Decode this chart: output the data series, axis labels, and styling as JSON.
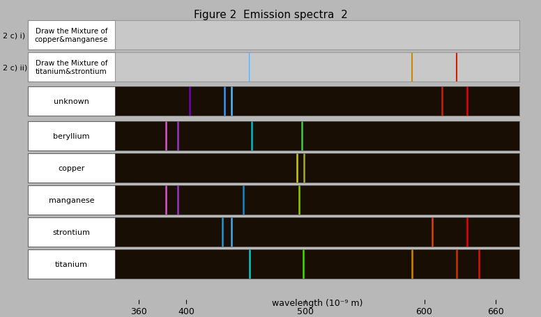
{
  "title": "Figure 2  Emission spectra  2",
  "xlabel": "wavelength (10⁻⁹ m)",
  "x_min": 340,
  "x_max": 680,
  "x_ticks": [
    360,
    400,
    500,
    600,
    660
  ],
  "background_color": "#b8b8b8",
  "spectrum_bg": "#180e04",
  "answer_bg": "#c8c8c8",
  "rows": [
    {
      "name": "unknown",
      "lines": [
        {
          "wl": 403,
          "color": "#7700bb"
        },
        {
          "wl": 432,
          "color": "#3399ff"
        },
        {
          "wl": 438,
          "color": "#55bbff"
        },
        {
          "wl": 615,
          "color": "#cc2200"
        },
        {
          "wl": 636,
          "color": "#ee0000"
        }
      ]
    },
    {
      "name": "beryllium",
      "lines": [
        {
          "wl": 383,
          "color": "#dd55cc"
        },
        {
          "wl": 393,
          "color": "#9933cc"
        },
        {
          "wl": 455,
          "color": "#00bbcc"
        },
        {
          "wl": 497,
          "color": "#44cc44"
        }
      ]
    },
    {
      "name": "copper",
      "lines": [
        {
          "wl": 493,
          "color": "#cccc00"
        },
        {
          "wl": 499,
          "color": "#aaaa22"
        }
      ]
    },
    {
      "name": "manganese",
      "lines": [
        {
          "wl": 383,
          "color": "#dd55cc"
        },
        {
          "wl": 393,
          "color": "#9933cc"
        },
        {
          "wl": 448,
          "color": "#1188cc"
        },
        {
          "wl": 495,
          "color": "#88cc00"
        }
      ]
    },
    {
      "name": "strontium",
      "lines": [
        {
          "wl": 430,
          "color": "#2299cc"
        },
        {
          "wl": 438,
          "color": "#44aaee"
        },
        {
          "wl": 607,
          "color": "#dd4400"
        },
        {
          "wl": 636,
          "color": "#ee0000"
        }
      ]
    },
    {
      "name": "titanium",
      "lines": [
        {
          "wl": 453,
          "color": "#00cccc"
        },
        {
          "wl": 498,
          "color": "#44dd00"
        },
        {
          "wl": 590,
          "color": "#cc8800"
        },
        {
          "wl": 627,
          "color": "#cc3300"
        },
        {
          "wl": 646,
          "color": "#dd1100"
        }
      ]
    }
  ],
  "answer_rows": [
    {
      "side_label": "2 c) i)",
      "label": "Draw the Mixture of\ncopper&manganese",
      "lines": [],
      "has_divider": false
    },
    {
      "side_label": "2 c) ii)",
      "label": "Draw the Mixture of\ntitanium&strontium",
      "lines": [
        {
          "wl": 453,
          "color": "#44aaff"
        },
        {
          "wl": 590,
          "color": "#cc8800"
        },
        {
          "wl": 627,
          "color": "#cc2200"
        }
      ],
      "has_divider": true,
      "divider_wl": 453
    }
  ]
}
